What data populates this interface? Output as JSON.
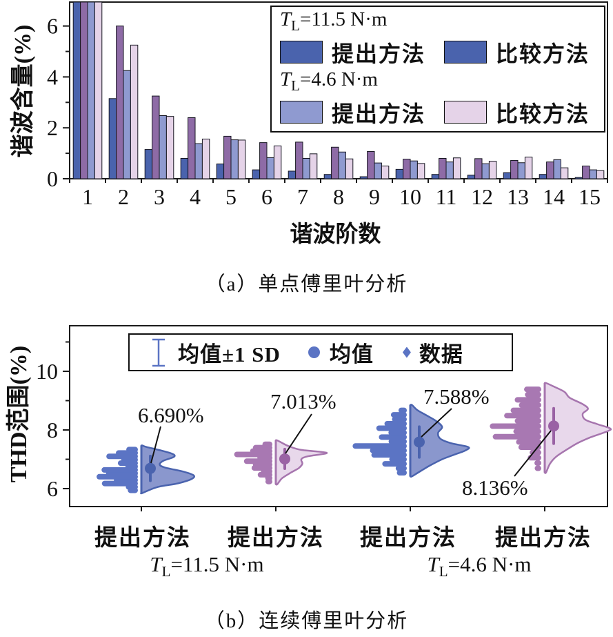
{
  "figure": {
    "caption_a": "（a）单点傅里叶分析",
    "caption_b": "（b）连续傅里叶分析"
  },
  "colors": {
    "bar_blue": "#4a63ad",
    "bar_purple": "#8e6ba6",
    "bar_periwinkle": "#8f9ad0",
    "bar_pink": "#e5d3e8",
    "violin_blue_fill": "#8a97cd",
    "violin_blue_stroke": "#4a63ae",
    "violin_blue_point": "#5b74c4",
    "violin_pink_fill": "#e8d8eb",
    "violin_pink_stroke": "#a675ae",
    "violin_pink_point": "#a878b2",
    "mean_blue": "#4a63ae",
    "mean_purple": "#9a62a4",
    "axis": "#1a1a1a",
    "annotation": "#111111"
  },
  "chart_data": [
    {
      "type": "bar",
      "xlabel": "谐波阶数",
      "ylabel": "谐波含量(%)",
      "categories": [
        1,
        2,
        3,
        4,
        5,
        6,
        7,
        8,
        9,
        10,
        11,
        12,
        13,
        14,
        15
      ],
      "ylim": [
        0,
        6.94
      ],
      "yticks_major": [
        0,
        2,
        4,
        6
      ],
      "yticks_minor": [
        1,
        3,
        5
      ],
      "grid": "off",
      "clip_note": "all four bars at harmonic 1 exceed the axis top and are clipped",
      "series": [
        {
          "name": "提出方法",
          "condition": "TL=11.5 N·m",
          "color_key": "bar_blue",
          "values": [
            7.5,
            3.15,
            1.15,
            0.8,
            0.58,
            0.35,
            0.3,
            0.17,
            0.08,
            0.37,
            0.17,
            0.14,
            0.24,
            0.17,
            0.05
          ]
        },
        {
          "name": "比较方法",
          "condition": "TL=11.5 N·m",
          "color_key": "bar_purple",
          "values": [
            7.5,
            6.0,
            3.25,
            2.4,
            1.67,
            1.42,
            1.44,
            1.24,
            1.07,
            0.77,
            0.8,
            0.79,
            0.72,
            0.66,
            0.5
          ]
        },
        {
          "name": "提出方法",
          "condition": "TL=4.6 N·m",
          "color_key": "bar_periwinkle",
          "values": [
            7.5,
            4.25,
            2.48,
            1.38,
            1.53,
            0.83,
            0.8,
            1.05,
            0.62,
            0.7,
            0.66,
            0.59,
            0.63,
            0.75,
            0.35
          ]
        },
        {
          "name": "比较方法",
          "condition": "TL=4.6 N·m",
          "color_key": "bar_pink",
          "values": [
            7.5,
            5.25,
            2.45,
            1.56,
            1.52,
            1.29,
            0.98,
            0.78,
            0.5,
            0.6,
            0.82,
            0.69,
            0.85,
            0.43,
            0.32
          ]
        }
      ],
      "legend": {
        "group1_symbol": "T",
        "group1_sub": "L",
        "group1_rest": "=11.5 N·m",
        "group2_symbol": "T",
        "group2_sub": "L",
        "group2_rest": "=4.6 N·m",
        "proposed": "提出方法",
        "compared": "比较方法"
      }
    },
    {
      "type": "violin",
      "ylabel": "THD范围(%)",
      "ylim": [
        5.4,
        11.55
      ],
      "yticks_major": [
        6,
        8,
        10
      ],
      "yticks_minor": [
        7,
        9,
        11
      ],
      "grid": "off",
      "legend": {
        "errorbar": "均值±1 SD",
        "mean": "均值",
        "data": "数据"
      },
      "x_group_labels": [
        {
          "symbol": "T",
          "sub": "L",
          "rest": "=11.5 N·m"
        },
        {
          "symbol": "T",
          "sub": "L",
          "rest": "=4.6 N·m"
        }
      ],
      "violins": [
        {
          "x_label": "提出方法",
          "mean": 6.69,
          "sd": 0.42,
          "annotation": "6.690%",
          "color_key": "violin_blue",
          "range": [
            5.85,
            7.47
          ],
          "max_width": 76,
          "profile": [
            [
              5.85,
              0.02
            ],
            [
              6.05,
              0.3
            ],
            [
              6.18,
              0.7
            ],
            [
              6.32,
              0.95
            ],
            [
              6.45,
              1.0
            ],
            [
              6.58,
              0.8
            ],
            [
              6.72,
              0.45
            ],
            [
              6.82,
              0.35
            ],
            [
              6.95,
              0.42
            ],
            [
              7.08,
              0.62
            ],
            [
              7.18,
              0.6
            ],
            [
              7.3,
              0.38
            ],
            [
              7.42,
              0.1
            ],
            [
              7.47,
              0.02
            ]
          ]
        },
        {
          "x_label": "提出方法",
          "mean": 7.013,
          "sd": 0.33,
          "annotation": "7.013%",
          "color_key": "violin_pink",
          "range": [
            6.15,
            7.65
          ],
          "max_width": 74,
          "profile": [
            [
              6.15,
              0.03
            ],
            [
              6.35,
              0.12
            ],
            [
              6.55,
              0.3
            ],
            [
              6.7,
              0.45
            ],
            [
              6.85,
              0.52
            ],
            [
              7.0,
              0.5
            ],
            [
              7.1,
              0.62
            ],
            [
              7.22,
              1.0
            ],
            [
              7.32,
              0.5
            ],
            [
              7.45,
              0.25
            ],
            [
              7.58,
              0.1
            ],
            [
              7.65,
              0.02
            ]
          ]
        },
        {
          "x_label": "提出方法",
          "mean": 7.588,
          "sd": 0.52,
          "annotation": "7.588%",
          "color_key": "violin_blue",
          "range": [
            6.42,
            8.85
          ],
          "max_width": 84,
          "profile": [
            [
              6.42,
              0.03
            ],
            [
              6.6,
              0.18
            ],
            [
              6.8,
              0.35
            ],
            [
              7.0,
              0.55
            ],
            [
              7.15,
              0.75
            ],
            [
              7.3,
              0.95
            ],
            [
              7.42,
              1.0
            ],
            [
              7.55,
              0.7
            ],
            [
              7.7,
              0.52
            ],
            [
              7.9,
              0.48
            ],
            [
              8.1,
              0.55
            ],
            [
              8.3,
              0.45
            ],
            [
              8.5,
              0.28
            ],
            [
              8.68,
              0.12
            ],
            [
              8.85,
              0.03
            ]
          ]
        },
        {
          "x_label": "提出方法",
          "mean": 8.136,
          "sd": 0.6,
          "annotation": "8.136%",
          "color_key": "violin_pink",
          "range": [
            6.55,
            9.6
          ],
          "max_width": 95,
          "profile": [
            [
              6.55,
              0.02
            ],
            [
              6.85,
              0.08
            ],
            [
              7.1,
              0.18
            ],
            [
              7.35,
              0.35
            ],
            [
              7.55,
              0.5
            ],
            [
              7.75,
              0.7
            ],
            [
              7.95,
              0.95
            ],
            [
              8.05,
              1.0
            ],
            [
              8.2,
              0.8
            ],
            [
              8.35,
              0.62
            ],
            [
              8.55,
              0.58
            ],
            [
              8.72,
              0.66
            ],
            [
              8.88,
              0.58
            ],
            [
              9.1,
              0.38
            ],
            [
              9.3,
              0.3
            ],
            [
              9.5,
              0.12
            ],
            [
              9.6,
              0.02
            ]
          ]
        }
      ]
    }
  ]
}
